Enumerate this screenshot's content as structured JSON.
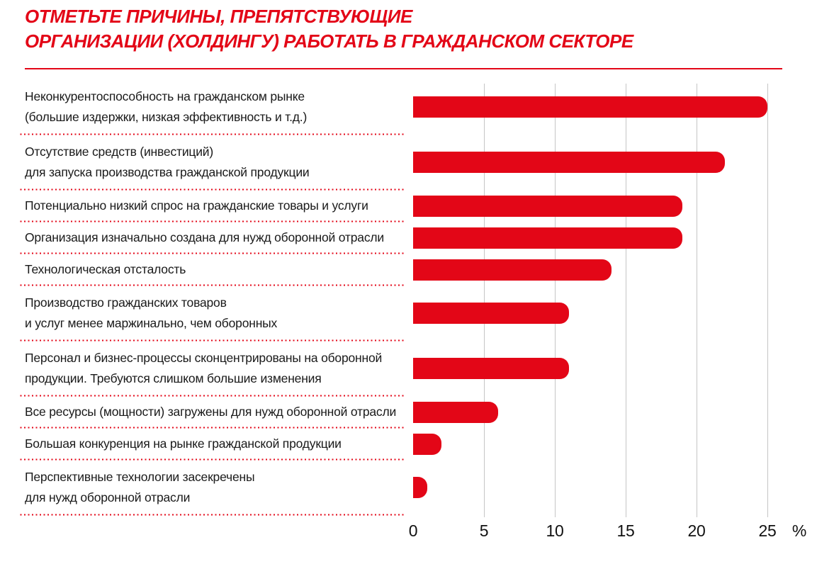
{
  "title": {
    "line1": "ОТМЕТЬТЕ ПРИЧИНЫ, ПРЕПЯТСТВУЮЩИЕ",
    "line2": "ОРГАНИЗАЦИИ (ХОЛДИНГУ) РАБОТАТЬ В ГРАЖДАНСКОМ СЕКТОРЕ"
  },
  "colors": {
    "accent_red": "#e30617",
    "gridline_gray": "#c5c5c5",
    "label_text": "#1a1a1a"
  },
  "axis": {
    "tick_labels": [
      "0",
      "5",
      "10",
      "15",
      "20",
      "25"
    ],
    "unit_label": "%"
  },
  "chart_data": {
    "type": "bar",
    "orientation": "horizontal",
    "title": "ОТМЕТЬТЕ ПРИЧИНЫ, ПРЕПЯТСТВУЮЩИЕ ОРГАНИЗАЦИИ (ХОЛДИНГУ) РАБОТАТЬ В ГРАЖДАНСКОМ СЕКТОРЕ",
    "categories": [
      "Неконкурентоспособность на гражданском рынке\n(большие издержки, низкая эффективность и т.д.)",
      "Отсутствие средств (инвестиций)\nдля запуска производства гражданской продукции",
      "Потенциально низкий спрос на гражданские товары и услуги",
      "Организация изначально создана для нужд оборонной отрасли",
      "Технологическая отсталость",
      "Производство гражданских товаров\nи услуг менее маржинально, чем оборонных",
      "Персонал и бизнес-процессы сконцентрированы на оборонной\nпродукции. Требуются слишком большие изменения",
      "Все ресурсы (мощности) загружены для нужд оборонной отрасли",
      "Большая конкуренция на рынке гражданской продукции",
      "Перспективные технологии засекречены\nдля нужд оборонной отрасли"
    ],
    "values": [
      25,
      22,
      19,
      19,
      14,
      11,
      11,
      6,
      2,
      1
    ],
    "unit": "%",
    "xlabel": "%",
    "ylabel": "",
    "xlim": [
      0,
      25
    ],
    "xticks": [
      0,
      5,
      10,
      15,
      20,
      25
    ],
    "grid": true,
    "legend": false,
    "bar_color": "#e30617"
  }
}
